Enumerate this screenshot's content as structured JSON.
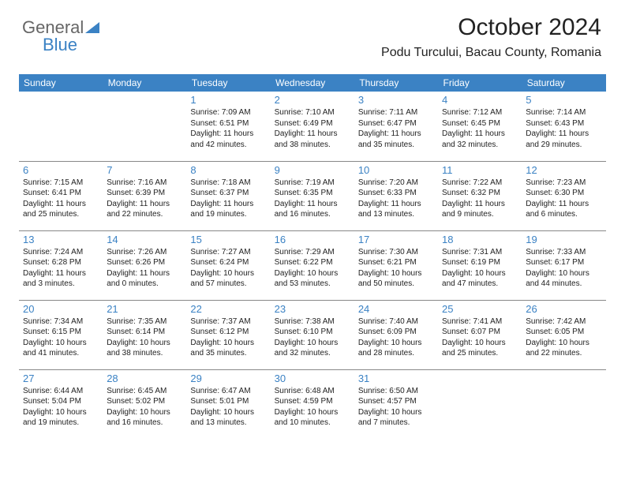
{
  "logo": {
    "text1": "General",
    "text2": "Blue",
    "icon_color": "#3b82c4"
  },
  "header": {
    "title": "October 2024",
    "location": "Podu Turcului, Bacau County, Romania"
  },
  "colors": {
    "header_bg": "#3b82c4",
    "header_text": "#ffffff",
    "daynum": "#3b82c4",
    "body_text": "#222222",
    "border": "#888888",
    "background": "#ffffff"
  },
  "daynames": [
    "Sunday",
    "Monday",
    "Tuesday",
    "Wednesday",
    "Thursday",
    "Friday",
    "Saturday"
  ],
  "weeks": [
    [
      {
        "n": "",
        "sr": "",
        "ss": "",
        "dl": ""
      },
      {
        "n": "",
        "sr": "",
        "ss": "",
        "dl": ""
      },
      {
        "n": "1",
        "sr": "Sunrise: 7:09 AM",
        "ss": "Sunset: 6:51 PM",
        "dl": "Daylight: 11 hours and 42 minutes."
      },
      {
        "n": "2",
        "sr": "Sunrise: 7:10 AM",
        "ss": "Sunset: 6:49 PM",
        "dl": "Daylight: 11 hours and 38 minutes."
      },
      {
        "n": "3",
        "sr": "Sunrise: 7:11 AM",
        "ss": "Sunset: 6:47 PM",
        "dl": "Daylight: 11 hours and 35 minutes."
      },
      {
        "n": "4",
        "sr": "Sunrise: 7:12 AM",
        "ss": "Sunset: 6:45 PM",
        "dl": "Daylight: 11 hours and 32 minutes."
      },
      {
        "n": "5",
        "sr": "Sunrise: 7:14 AM",
        "ss": "Sunset: 6:43 PM",
        "dl": "Daylight: 11 hours and 29 minutes."
      }
    ],
    [
      {
        "n": "6",
        "sr": "Sunrise: 7:15 AM",
        "ss": "Sunset: 6:41 PM",
        "dl": "Daylight: 11 hours and 25 minutes."
      },
      {
        "n": "7",
        "sr": "Sunrise: 7:16 AM",
        "ss": "Sunset: 6:39 PM",
        "dl": "Daylight: 11 hours and 22 minutes."
      },
      {
        "n": "8",
        "sr": "Sunrise: 7:18 AM",
        "ss": "Sunset: 6:37 PM",
        "dl": "Daylight: 11 hours and 19 minutes."
      },
      {
        "n": "9",
        "sr": "Sunrise: 7:19 AM",
        "ss": "Sunset: 6:35 PM",
        "dl": "Daylight: 11 hours and 16 minutes."
      },
      {
        "n": "10",
        "sr": "Sunrise: 7:20 AM",
        "ss": "Sunset: 6:33 PM",
        "dl": "Daylight: 11 hours and 13 minutes."
      },
      {
        "n": "11",
        "sr": "Sunrise: 7:22 AM",
        "ss": "Sunset: 6:32 PM",
        "dl": "Daylight: 11 hours and 9 minutes."
      },
      {
        "n": "12",
        "sr": "Sunrise: 7:23 AM",
        "ss": "Sunset: 6:30 PM",
        "dl": "Daylight: 11 hours and 6 minutes."
      }
    ],
    [
      {
        "n": "13",
        "sr": "Sunrise: 7:24 AM",
        "ss": "Sunset: 6:28 PM",
        "dl": "Daylight: 11 hours and 3 minutes."
      },
      {
        "n": "14",
        "sr": "Sunrise: 7:26 AM",
        "ss": "Sunset: 6:26 PM",
        "dl": "Daylight: 11 hours and 0 minutes."
      },
      {
        "n": "15",
        "sr": "Sunrise: 7:27 AM",
        "ss": "Sunset: 6:24 PM",
        "dl": "Daylight: 10 hours and 57 minutes."
      },
      {
        "n": "16",
        "sr": "Sunrise: 7:29 AM",
        "ss": "Sunset: 6:22 PM",
        "dl": "Daylight: 10 hours and 53 minutes."
      },
      {
        "n": "17",
        "sr": "Sunrise: 7:30 AM",
        "ss": "Sunset: 6:21 PM",
        "dl": "Daylight: 10 hours and 50 minutes."
      },
      {
        "n": "18",
        "sr": "Sunrise: 7:31 AM",
        "ss": "Sunset: 6:19 PM",
        "dl": "Daylight: 10 hours and 47 minutes."
      },
      {
        "n": "19",
        "sr": "Sunrise: 7:33 AM",
        "ss": "Sunset: 6:17 PM",
        "dl": "Daylight: 10 hours and 44 minutes."
      }
    ],
    [
      {
        "n": "20",
        "sr": "Sunrise: 7:34 AM",
        "ss": "Sunset: 6:15 PM",
        "dl": "Daylight: 10 hours and 41 minutes."
      },
      {
        "n": "21",
        "sr": "Sunrise: 7:35 AM",
        "ss": "Sunset: 6:14 PM",
        "dl": "Daylight: 10 hours and 38 minutes."
      },
      {
        "n": "22",
        "sr": "Sunrise: 7:37 AM",
        "ss": "Sunset: 6:12 PM",
        "dl": "Daylight: 10 hours and 35 minutes."
      },
      {
        "n": "23",
        "sr": "Sunrise: 7:38 AM",
        "ss": "Sunset: 6:10 PM",
        "dl": "Daylight: 10 hours and 32 minutes."
      },
      {
        "n": "24",
        "sr": "Sunrise: 7:40 AM",
        "ss": "Sunset: 6:09 PM",
        "dl": "Daylight: 10 hours and 28 minutes."
      },
      {
        "n": "25",
        "sr": "Sunrise: 7:41 AM",
        "ss": "Sunset: 6:07 PM",
        "dl": "Daylight: 10 hours and 25 minutes."
      },
      {
        "n": "26",
        "sr": "Sunrise: 7:42 AM",
        "ss": "Sunset: 6:05 PM",
        "dl": "Daylight: 10 hours and 22 minutes."
      }
    ],
    [
      {
        "n": "27",
        "sr": "Sunrise: 6:44 AM",
        "ss": "Sunset: 5:04 PM",
        "dl": "Daylight: 10 hours and 19 minutes."
      },
      {
        "n": "28",
        "sr": "Sunrise: 6:45 AM",
        "ss": "Sunset: 5:02 PM",
        "dl": "Daylight: 10 hours and 16 minutes."
      },
      {
        "n": "29",
        "sr": "Sunrise: 6:47 AM",
        "ss": "Sunset: 5:01 PM",
        "dl": "Daylight: 10 hours and 13 minutes."
      },
      {
        "n": "30",
        "sr": "Sunrise: 6:48 AM",
        "ss": "Sunset: 4:59 PM",
        "dl": "Daylight: 10 hours and 10 minutes."
      },
      {
        "n": "31",
        "sr": "Sunrise: 6:50 AM",
        "ss": "Sunset: 4:57 PM",
        "dl": "Daylight: 10 hours and 7 minutes."
      },
      {
        "n": "",
        "sr": "",
        "ss": "",
        "dl": ""
      },
      {
        "n": "",
        "sr": "",
        "ss": "",
        "dl": ""
      }
    ]
  ]
}
